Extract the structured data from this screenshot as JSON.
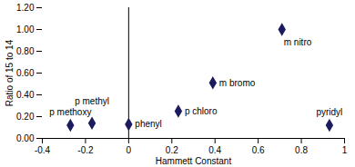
{
  "chart_data": {
    "type": "scatter",
    "x_label": "Hammett Constant",
    "y_label": "Ratio of 15 to 14",
    "x": [
      -0.27,
      -0.17,
      0,
      0.23,
      0.39,
      0.71,
      0.93
    ],
    "values": [
      0.12,
      0.14,
      0.13,
      0.25,
      0.51,
      1.0,
      0.12
    ],
    "point_labels": [
      "p methoxy",
      "p methyl",
      "phenyl",
      "p chloro",
      "m bromo",
      "m nitro",
      "pyridyl"
    ],
    "color": "#1b1b5e",
    "marker": "diamond",
    "xlim": [
      -0.4,
      1
    ],
    "xticks": [
      -0.4,
      -0.2,
      0,
      0.2,
      0.4,
      0.6,
      0.8,
      1
    ],
    "ylim": [
      0,
      1.2
    ],
    "yticks": [
      {
        "value": 0,
        "label": "0.00"
      },
      {
        "value": 0.2,
        "label": "0.20"
      },
      {
        "value": 0.4,
        "label": "0.40"
      },
      {
        "value": 0.6,
        "label": "0.60"
      },
      {
        "value": 0.8,
        "label": "0.80"
      },
      {
        "value": 1.0,
        "label": "1.00"
      },
      {
        "value": 1.2,
        "label": "1.20"
      }
    ],
    "grid": false
  }
}
